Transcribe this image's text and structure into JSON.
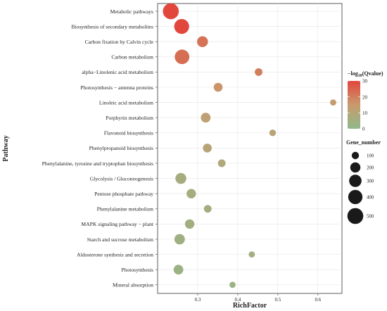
{
  "chart_data": {
    "type": "scatter",
    "xlabel": "RichFactor",
    "ylabel": "Pathway",
    "xlim": [
      0.2,
      0.66
    ],
    "xticks": [
      "0.3",
      "0.4",
      "0.5",
      "0.6"
    ],
    "xtick_values": [
      0.3,
      0.4,
      0.5,
      0.6
    ],
    "grid": true,
    "points": [
      {
        "pathway": "Metabolic pathways",
        "rich_factor": 0.233,
        "qvalue_log": 32,
        "gene_number": 500
      },
      {
        "pathway": "Biosynthesis of secondary metabolites",
        "rich_factor": 0.26,
        "qvalue_log": 30,
        "gene_number": 440
      },
      {
        "pathway": "Carbon fixation by Calvin cycle",
        "rich_factor": 0.312,
        "qvalue_log": 22,
        "gene_number": 230
      },
      {
        "pathway": "Carbon metabolism",
        "rich_factor": 0.261,
        "qvalue_log": 23,
        "gene_number": 420
      },
      {
        "pathway": "alpha−Linolenic acid metabolism",
        "rich_factor": 0.452,
        "qvalue_log": 20,
        "gene_number": 110
      },
      {
        "pathway": "Photosynthesis − antenna proteins",
        "rich_factor": 0.351,
        "qvalue_log": 16,
        "gene_number": 150
      },
      {
        "pathway": "Linoleic acid metabolism",
        "rich_factor": 0.638,
        "qvalue_log": 14,
        "gene_number": 70
      },
      {
        "pathway": "Porphyrin metabolism",
        "rich_factor": 0.32,
        "qvalue_log": 12,
        "gene_number": 180
      },
      {
        "pathway": "Flavonoid biosynthesis",
        "rich_factor": 0.487,
        "qvalue_log": 10,
        "gene_number": 80
      },
      {
        "pathway": "Phenylpropanoid biosynthesis",
        "rich_factor": 0.324,
        "qvalue_log": 10,
        "gene_number": 150
      },
      {
        "pathway": "Phenylalanine, tyrosine and tryptophan biosynthesis",
        "rich_factor": 0.36,
        "qvalue_log": 8,
        "gene_number": 110
      },
      {
        "pathway": "Glycolysis / Gluconeogenesis",
        "rich_factor": 0.258,
        "qvalue_log": 6,
        "gene_number": 230
      },
      {
        "pathway": "Pentose phosphate pathway",
        "rich_factor": 0.284,
        "qvalue_log": 6,
        "gene_number": 170
      },
      {
        "pathway": "Phenylalanine metabolism",
        "rich_factor": 0.325,
        "qvalue_log": 6,
        "gene_number": 110
      },
      {
        "pathway": "MAPK signaling pathway − plant",
        "rich_factor": 0.28,
        "qvalue_log": 5,
        "gene_number": 170
      },
      {
        "pathway": "Starch and sucrose metabolism",
        "rich_factor": 0.255,
        "qvalue_log": 4,
        "gene_number": 210
      },
      {
        "pathway": "Aldosterone synthesis and secretion",
        "rich_factor": 0.435,
        "qvalue_log": 5,
        "gene_number": 70
      },
      {
        "pathway": "Photosynthesis",
        "rich_factor": 0.252,
        "qvalue_log": 3,
        "gene_number": 180
      },
      {
        "pathway": "Mineral absorption",
        "rich_factor": 0.387,
        "qvalue_log": 3,
        "gene_number": 70
      }
    ],
    "color_legend": {
      "title_prefix": "−log",
      "title_sub": "10",
      "title_suffix": "(Qvalue)",
      "ticks": [
        "30",
        "20",
        "10",
        "0"
      ],
      "tick_values": [
        30,
        20,
        10,
        0
      ],
      "range": [
        0,
        30
      ],
      "low_color": "#8fb88a",
      "mid_color": "#c99a6d",
      "high_color": "#e2473e"
    },
    "size_legend": {
      "title": "Gene_number",
      "labels": [
        "100",
        "200",
        "300",
        "400",
        "500"
      ],
      "values": [
        100,
        200,
        300,
        400,
        500
      ]
    }
  }
}
